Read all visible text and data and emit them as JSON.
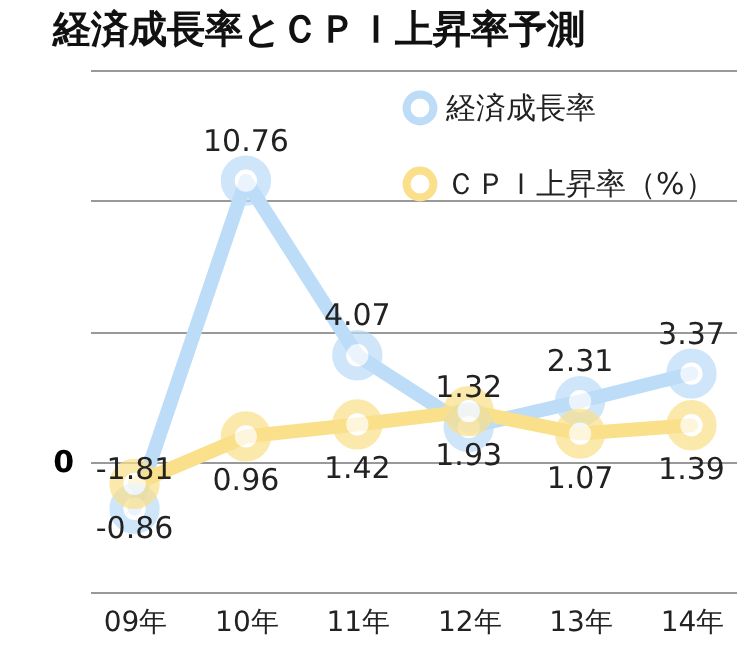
{
  "chart_data": {
    "type": "line",
    "title": "経済成長率とＣＰＩ上昇率予測",
    "categories": [
      "09年",
      "10年",
      "11年",
      "12年",
      "13年",
      "14年"
    ],
    "series": [
      {
        "name": "経済成長率",
        "color": "#bcdcf8",
        "values": [
          -1.81,
          10.76,
          4.07,
          1.32,
          2.31,
          3.37
        ]
      },
      {
        "name": "ＣＰＩ上昇率（%）",
        "color": "#fae08a",
        "values": [
          -0.86,
          0.96,
          1.42,
          1.93,
          1.07,
          1.39
        ]
      }
    ],
    "ylim": [
      -5,
      15
    ],
    "annotations": [
      "0"
    ],
    "grid": "y",
    "legend": "top right",
    "marker": "circle",
    "data_labels": true,
    "tick_labels": "x"
  }
}
